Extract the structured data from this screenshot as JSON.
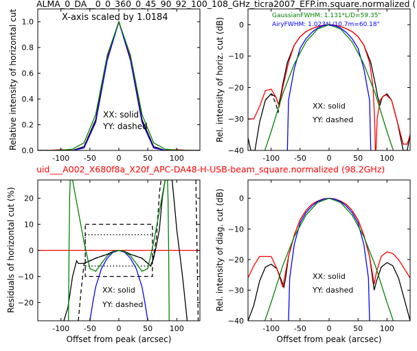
{
  "header": {
    "title_top": "ALMA_0_DA__0_0_360_0_45_90_92_100_108_GHz_ticra2007_EFP.im.square.normalized (",
    "title_mid": "uid___A002_X680f8a_X20f_APC-DA48-H-USB-beam_square.normalized (98.2GHz)",
    "title_top_color": "#000000",
    "title_mid_color": "#ff0000"
  },
  "chart_data": [
    {
      "id": "tl",
      "type": "line",
      "xlim": [
        -140,
        140
      ],
      "ylim": [
        0,
        1.1
      ],
      "xticks": [
        -100,
        -50,
        0,
        50,
        100
      ],
      "yticks": [
        0.0,
        0.2,
        0.4,
        0.6,
        0.8,
        1.0
      ],
      "ytick_labels": [
        "0.0",
        "0.2",
        "0.4",
        "0.6",
        "0.8",
        "1.0"
      ],
      "show_xtick_labels": true,
      "xlabel": "",
      "ylabel": "Relative intensity of horizontal cut",
      "annotations": [
        "X-axis scaled by 1.0184",
        "XX: solid",
        "YY: dashed"
      ],
      "series": [
        {
          "color": "#000000",
          "style": "solid",
          "x": [
            -140,
            -120,
            -100,
            -80,
            -60,
            -40,
            -20,
            0,
            20,
            40,
            60,
            80,
            100,
            120,
            140
          ],
          "y": [
            0.0,
            0.0,
            0.005,
            0.0,
            0.03,
            0.24,
            0.72,
            1.0,
            0.72,
            0.24,
            0.03,
            0.0,
            0.005,
            0.0,
            0.0
          ]
        },
        {
          "color": "#000000",
          "style": "dashed",
          "x": [
            -140,
            -120,
            -100,
            -80,
            -60,
            -40,
            -20,
            0,
            20,
            40,
            60,
            80,
            100,
            120,
            140
          ],
          "y": [
            0.0,
            0.0,
            0.005,
            0.0,
            0.03,
            0.24,
            0.72,
            1.0,
            0.72,
            0.24,
            0.03,
            0.0,
            0.005,
            0.0,
            0.0
          ]
        },
        {
          "color": "#ff0000",
          "style": "solid",
          "x": [
            -140,
            -120,
            -100,
            -80,
            -60,
            -40,
            -20,
            0,
            20,
            40,
            60,
            80,
            100,
            120,
            140
          ],
          "y": [
            0.0,
            0.0,
            0.006,
            0.0,
            0.02,
            0.22,
            0.71,
            1.0,
            0.71,
            0.22,
            0.02,
            0.0,
            0.006,
            0.0,
            0.0
          ]
        },
        {
          "color": "#ff0000",
          "style": "dashed",
          "x": [
            -140,
            -120,
            -100,
            -80,
            -60,
            -40,
            -20,
            0,
            20,
            40,
            60,
            80,
            100,
            120,
            140
          ],
          "y": [
            0.0,
            0.0,
            0.006,
            0.0,
            0.02,
            0.22,
            0.71,
            1.0,
            0.71,
            0.22,
            0.02,
            0.0,
            0.006,
            0.0,
            0.0
          ]
        },
        {
          "color": "#0000ff",
          "style": "solid",
          "x": [
            -140,
            -120,
            -100,
            -80,
            -60,
            -40,
            -20,
            0,
            20,
            40,
            60,
            80,
            100,
            120,
            140
          ],
          "y": [
            0.0,
            0.0,
            0.0,
            0.0,
            0.02,
            0.22,
            0.7,
            1.0,
            0.7,
            0.22,
            0.02,
            0.0,
            0.0,
            0.0,
            0.0
          ]
        },
        {
          "color": "#008000",
          "style": "solid",
          "x": [
            -140,
            -120,
            -100,
            -80,
            -60,
            -40,
            -20,
            0,
            20,
            40,
            60,
            80,
            100,
            120,
            140
          ],
          "y": [
            0.0,
            0.0,
            0.002,
            0.01,
            0.06,
            0.28,
            0.74,
            1.0,
            0.74,
            0.28,
            0.06,
            0.01,
            0.002,
            0.0,
            0.0
          ]
        }
      ]
    },
    {
      "id": "tr",
      "type": "line",
      "xlim": [
        -140,
        140
      ],
      "ylim": [
        -40,
        5
      ],
      "xticks": [
        -100,
        -50,
        0,
        50,
        100
      ],
      "yticks": [
        -40,
        -30,
        -20,
        -10,
        0
      ],
      "ytick_labels": [
        "−40",
        "−30",
        "−20",
        "−10",
        "0"
      ],
      "show_xtick_labels": true,
      "xlabel": "",
      "ylabel": "Rel. intensity of horiz. cut (dB)",
      "annotations": [
        "GaussianFWHM: 1.131*L/D=59.35\"",
        "AiryFWHM: 1.023*L/10.7m=60.18\"",
        "XX: solid",
        "YY: dashed"
      ],
      "series": [
        {
          "color": "#000000",
          "style": "solid",
          "x": [
            -140,
            -135,
            -128,
            -120,
            -110,
            -100,
            -92,
            -87,
            -84,
            -80,
            -72,
            -60,
            -50,
            -40,
            -30,
            -20,
            -10,
            0,
            10,
            20,
            30,
            40,
            50,
            60,
            72,
            80,
            84,
            88,
            92,
            100,
            108,
            118,
            128,
            135,
            140
          ],
          "y": [
            -36,
            -40,
            -40,
            -31,
            -24,
            -22,
            -23,
            -25.5,
            -23,
            -19,
            -12,
            -6.5,
            -3.8,
            -2.2,
            -1.3,
            -0.6,
            -0.15,
            0,
            -0.15,
            -0.6,
            -1.3,
            -2.2,
            -3.8,
            -6.5,
            -12,
            -19,
            -23,
            -25.5,
            -23,
            -22,
            -24,
            -31,
            -40,
            -40,
            -35
          ]
        },
        {
          "color": "#000000",
          "style": "dashed",
          "x": [
            -110,
            -100,
            -92,
            -88,
            -85,
            -80
          ],
          "y": [
            -24,
            -22,
            -25,
            -28,
            -25,
            -19
          ]
        },
        {
          "color": "#ff0000",
          "style": "solid",
          "x": [
            -140,
            -130,
            -120,
            -110,
            -100,
            -92,
            -86,
            -80,
            -70,
            -60,
            -50,
            -40,
            -30,
            -20,
            -10,
            0,
            10,
            20,
            30,
            40,
            50,
            60,
            70,
            76,
            79,
            80,
            81,
            83,
            88,
            95,
            100,
            108,
            118,
            128,
            135,
            140
          ],
          "y": [
            -30,
            -30,
            -26,
            -21,
            -20.5,
            -23,
            -26,
            -20,
            -12,
            -6.5,
            -3.8,
            -2.2,
            -1.3,
            -0.6,
            -0.15,
            0,
            -0.15,
            -0.6,
            -1.3,
            -2.2,
            -3.8,
            -6.5,
            -12,
            -20,
            -32,
            -40,
            -40,
            -30,
            -24,
            -22.5,
            -22.5,
            -24,
            -31,
            -38,
            -38,
            -35
          ]
        },
        {
          "color": "#0000ff",
          "style": "solid",
          "x": [
            -72,
            -70,
            -60,
            -50,
            -40,
            -30,
            -20,
            -10,
            0,
            10,
            20,
            30,
            40,
            50,
            60,
            70,
            72
          ],
          "y": [
            -40,
            -24,
            -14,
            -7.5,
            -4.5,
            -2.5,
            -1.1,
            -0.3,
            0,
            -0.3,
            -1.1,
            -2.5,
            -4.5,
            -7.5,
            -14,
            -24,
            -40
          ]
        },
        {
          "color": "#008000",
          "style": "solid",
          "x": [
            -140,
            -120,
            -100,
            -80,
            -60,
            -40,
            -20,
            0,
            20,
            40,
            60,
            80,
            100,
            120,
            140
          ],
          "y": [
            -55,
            -45,
            -34,
            -22,
            -12.5,
            -5.5,
            -1.4,
            0,
            -1.4,
            -5.5,
            -12.5,
            -22,
            -34,
            -45,
            -55
          ]
        }
      ]
    },
    {
      "id": "bl",
      "type": "line",
      "xlim": [
        -140,
        140
      ],
      "ylim": [
        -27,
        27
      ],
      "xticks": [
        -100,
        -50,
        0,
        50,
        100
      ],
      "yticks": [
        -20,
        -10,
        0,
        10,
        20
      ],
      "ytick_labels": [
        "−20",
        "−10",
        "0",
        "10",
        "20"
      ],
      "show_xtick_labels": true,
      "xlabel": "Offset from peak (arcsec)",
      "ylabel": "Residuals of horizontal cut (%)",
      "annotations": [
        "XX: solid",
        "YY: dashed"
      ],
      "series": [
        {
          "color": "#ff0000",
          "style": "solid",
          "x": [
            -140,
            140
          ],
          "y": [
            0,
            0
          ]
        },
        {
          "color": "#000000",
          "style": "dotted",
          "x": [
            -58,
            58
          ],
          "y": [
            6,
            6
          ]
        },
        {
          "color": "#000000",
          "style": "dotted",
          "x": [
            -58,
            58
          ],
          "y": [
            -6,
            -6
          ]
        },
        {
          "color": "#000000",
          "style": "dotted",
          "x": [
            -58,
            -58
          ],
          "y": [
            -6,
            6
          ]
        },
        {
          "color": "#000000",
          "style": "dashed",
          "x": [
            -58,
            58,
            58,
            -58,
            -58
          ],
          "y": [
            10,
            10,
            -10,
            -10,
            10
          ]
        },
        {
          "color": "#000000",
          "style": "solid",
          "x": [
            -95,
            -88,
            -80,
            -73,
            -70,
            -60,
            -40,
            -20,
            -10,
            0,
            10,
            20,
            40,
            55,
            60,
            65,
            70,
            75,
            80,
            85,
            92,
            95,
            100,
            110,
            118
          ],
          "y": [
            -27,
            -22,
            -10,
            -4,
            -5,
            -5,
            -3,
            -1.5,
            -0.4,
            0,
            -0.4,
            -1.5,
            -3,
            -6,
            -3,
            2,
            8,
            20,
            27,
            27,
            27,
            20,
            8,
            -10,
            -27
          ]
        },
        {
          "color": "#000000",
          "style": "dashed",
          "x": [
            -70,
            -65,
            -60,
            -40,
            -20,
            0,
            20,
            40,
            55,
            60,
            65,
            68,
            70,
            73
          ],
          "y": [
            -27,
            -15,
            -5,
            -3,
            -1.5,
            0,
            -1.5,
            -3,
            -6,
            -2,
            5,
            15,
            22,
            27
          ]
        },
        {
          "color": "#000000",
          "style": "dashed",
          "x": [
            133,
            135,
            137
          ],
          "y": [
            27,
            0,
            -27
          ]
        },
        {
          "color": "#0000ff",
          "style": "solid",
          "x": [
            -50,
            -45,
            -40,
            -30,
            -20,
            -10,
            0,
            10,
            20,
            30,
            40,
            45,
            50
          ],
          "y": [
            -27,
            -20,
            -14,
            -7,
            -3,
            -0.7,
            0,
            -0.7,
            -3,
            -7,
            -14,
            -20,
            -27
          ]
        },
        {
          "color": "#008000",
          "style": "solid",
          "x": [
            -87,
            -86,
            -85,
            -84,
            -83,
            -80,
            -70,
            -60,
            -50,
            -40,
            -30,
            -20,
            -10,
            0,
            10,
            20,
            30,
            40,
            50,
            60,
            70,
            80,
            83,
            84,
            85,
            86,
            87
          ],
          "y": [
            -27,
            0,
            20,
            27,
            27,
            27,
            15,
            3,
            -7,
            -8,
            -5,
            -2,
            -0.5,
            0,
            -0.5,
            -2,
            -5,
            -8,
            -7,
            3,
            15,
            27,
            27,
            27,
            20,
            0,
            -27
          ]
        }
      ]
    },
    {
      "id": "br",
      "type": "line",
      "xlim": [
        -140,
        140
      ],
      "ylim": [
        -40,
        6
      ],
      "xticks": [
        -100,
        -50,
        0,
        50,
        100
      ],
      "yticks": [
        -40,
        -30,
        -20,
        -10,
        0
      ],
      "ytick_labels": [
        "−40",
        "−30",
        "−20",
        "−10",
        "0"
      ],
      "show_xtick_labels": true,
      "xlabel": "Offset from peak (arcsec)",
      "ylabel": "Rel. intensity of diag. cut (dB)",
      "annotations": [
        "XX: solid",
        "YY: dashed"
      ],
      "series": [
        {
          "color": "#000000",
          "style": "solid",
          "x": [
            -140,
            -130,
            -120,
            -110,
            -100,
            -90,
            -82,
            -78,
            -75,
            -70,
            -60,
            -50,
            -40,
            -30,
            -20,
            -10,
            0,
            10,
            20,
            30,
            40,
            50,
            60,
            70,
            75,
            78,
            82,
            90,
            100,
            110,
            120,
            130,
            140
          ],
          "y": [
            -40,
            -35,
            -27,
            -22.5,
            -21.5,
            -23,
            -27,
            -29,
            -26,
            -19,
            -12,
            -7,
            -4,
            -2,
            -0.9,
            -0.2,
            0,
            -0.2,
            -0.9,
            -2,
            -4,
            -7,
            -12,
            -19,
            -26,
            -30,
            -27,
            -22.5,
            -21,
            -22,
            -26,
            -33,
            -40
          ]
        },
        {
          "color": "#ff0000",
          "style": "solid",
          "x": [
            -140,
            -130,
            -120,
            -110,
            -100,
            -90,
            -80,
            -70,
            -60,
            -50,
            -40,
            -30,
            -20,
            -10,
            0,
            10,
            20,
            30,
            40,
            50,
            60,
            70,
            78,
            82,
            90,
            100,
            110,
            120,
            130,
            140
          ],
          "y": [
            -26,
            -22,
            -19,
            -19,
            -19,
            -23,
            -29,
            -19,
            -12,
            -7,
            -4,
            -2,
            -0.9,
            -0.2,
            0,
            -0.2,
            -0.9,
            -2,
            -4,
            -7,
            -12,
            -19,
            -28,
            -24,
            -19,
            -17.5,
            -18,
            -20,
            -23,
            -26
          ]
        },
        {
          "color": "#0000ff",
          "style": "solid",
          "x": [
            -70,
            -68,
            -60,
            -50,
            -40,
            -30,
            -20,
            -10,
            0,
            10,
            20,
            30,
            40,
            50,
            60,
            68,
            70
          ],
          "y": [
            -40,
            -26,
            -15,
            -8,
            -4.7,
            -2.6,
            -1.1,
            -0.3,
            0,
            -0.3,
            -1.1,
            -2.6,
            -4.7,
            -8,
            -15,
            -26,
            -40
          ]
        },
        {
          "color": "#008000",
          "style": "solid",
          "x": [
            -140,
            -120,
            -100,
            -80,
            -60,
            -40,
            -20,
            0,
            20,
            40,
            60,
            80,
            100,
            120,
            140
          ],
          "y": [
            -55,
            -45,
            -34,
            -22,
            -12.5,
            -5.5,
            -1.4,
            0,
            -1.4,
            -5.5,
            -12.5,
            -22,
            -34,
            -45,
            -55
          ]
        }
      ]
    }
  ]
}
